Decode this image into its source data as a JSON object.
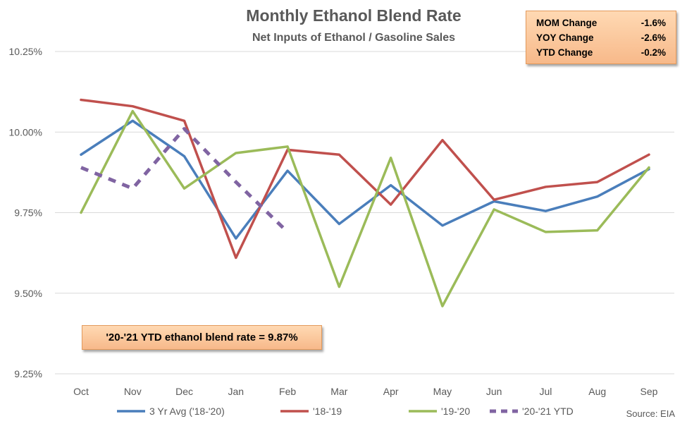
{
  "chart_data": {
    "type": "line",
    "title": "Monthly Ethanol Blend Rate",
    "subtitle": "Net Inputs of Ethanol / Gasoline Sales",
    "categories": [
      "Oct",
      "Nov",
      "Dec",
      "Jan",
      "Feb",
      "Mar",
      "Apr",
      "May",
      "Jun",
      "Jul",
      "Aug",
      "Sep"
    ],
    "ylim": [
      9.25,
      10.3
    ],
    "yticks": [
      "9.25%",
      "9.50%",
      "9.75%",
      "10.00%",
      "10.25%"
    ],
    "ytick_values": [
      9.25,
      9.5,
      9.75,
      10.0,
      10.25
    ],
    "grid": true,
    "legend_position": "bottom",
    "series": [
      {
        "name": "3 Yr Avg ('18-'20)",
        "color": "#4a7ebb",
        "dashed": false,
        "values": [
          9.93,
          10.035,
          9.925,
          9.67,
          9.88,
          9.715,
          9.835,
          9.71,
          9.785,
          9.755,
          9.8,
          9.885
        ]
      },
      {
        "name": "'18-'19",
        "color": "#c0504d",
        "dashed": false,
        "values": [
          10.1,
          10.08,
          10.035,
          9.61,
          9.945,
          9.93,
          9.775,
          9.975,
          9.79,
          9.83,
          9.845,
          9.93
        ]
      },
      {
        "name": "'19-'20",
        "color": "#9bbb59",
        "dashed": false,
        "values": [
          9.75,
          10.065,
          9.825,
          9.935,
          9.955,
          9.52,
          9.92,
          9.46,
          9.76,
          9.69,
          9.695,
          9.89
        ]
      },
      {
        "name": "'20-'21 YTD",
        "color": "#8064a2",
        "dashed": true,
        "values": [
          9.89,
          9.825,
          10.01,
          9.845,
          9.69,
          null,
          null,
          null,
          null,
          null,
          null,
          null
        ]
      }
    ],
    "source": "Source: EIA"
  },
  "info_box": {
    "rows": [
      {
        "label": "MOM Change",
        "value": "-1.6%"
      },
      {
        "label": "YOY Change",
        "value": "-2.6%"
      },
      {
        "label": "YTD Change",
        "value": "-0.2%"
      }
    ]
  },
  "note": "'20-'21 YTD ethanol blend rate = 9.87%"
}
